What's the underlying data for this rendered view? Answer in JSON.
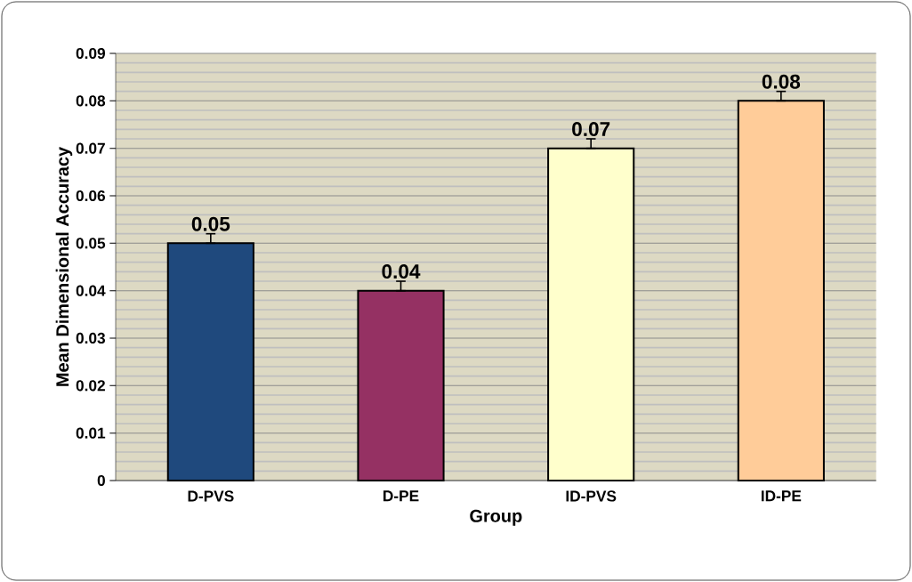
{
  "chart_data": {
    "type": "bar",
    "xlabel": "Group",
    "ylabel": "Mean Dimensional Accuracy",
    "categories": [
      "D-PVS",
      "D-PE",
      "ID-PVS",
      "ID-PE"
    ],
    "values": [
      0.05,
      0.04,
      0.07,
      0.08
    ],
    "colors": [
      "#1f497d",
      "#953163",
      "#ffffcc",
      "#ffcc99"
    ],
    "errors": [
      [
        0.05,
        0.052
      ],
      [
        0.04,
        0.042
      ],
      [
        0.07,
        0.072
      ],
      [
        0.08,
        0.082
      ]
    ],
    "data_labels": true,
    "ylim": [
      0,
      0.09
    ],
    "yticks": [
      0,
      0.01,
      0.02,
      0.03,
      0.04,
      0.05,
      0.06,
      0.07,
      0.08,
      0.09
    ],
    "grid": "y"
  }
}
